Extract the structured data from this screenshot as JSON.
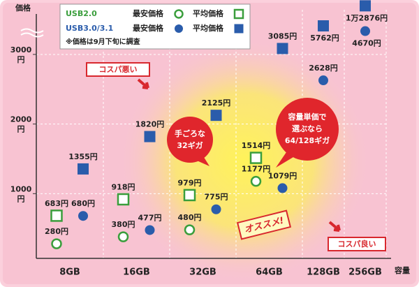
{
  "chart_data": {
    "type": "scatter",
    "y_label": "価格",
    "x_label": "容量",
    "ytick_unit": "円",
    "note": "※価格は9月下旬に調査",
    "categories": [
      "8GB",
      "16GB",
      "32GB",
      "64GB",
      "128GB",
      "256GB"
    ],
    "ylim": [
      0,
      13000
    ],
    "y_break": 3200,
    "yticks": [
      1000,
      2000,
      3000
    ],
    "grid": true,
    "groups": [
      {
        "name": "USB2.0",
        "color": "#3a9e3c"
      },
      {
        "name": "USB3.0/3.1",
        "color": "#2a5cab"
      }
    ],
    "series": [
      {
        "name": "最安価格",
        "group": 0,
        "marker": "circle",
        "values": [
          280,
          380,
          480,
          1177,
          null,
          null
        ],
        "value_labels": [
          "280円",
          "380円",
          "480円",
          "1177円",
          null,
          null
        ]
      },
      {
        "name": "平均価格",
        "group": 0,
        "marker": "square",
        "values": [
          683,
          918,
          979,
          1514,
          null,
          null
        ],
        "value_labels": [
          "683円",
          "918円",
          "979円",
          "1514円",
          null,
          null
        ]
      },
      {
        "name": "最安価格",
        "group": 1,
        "marker": "circle",
        "values": [
          680,
          477,
          775,
          1079,
          2628,
          4670
        ],
        "value_labels": [
          "680円",
          "477円",
          "775円",
          "1079円",
          "2628円",
          "4670円"
        ]
      },
      {
        "name": "平均価格",
        "group": 1,
        "marker": "square",
        "values": [
          1355,
          1820,
          2125,
          3085,
          5762,
          12876
        ],
        "value_labels": [
          "1355円",
          "1820円",
          "2125円",
          "3085円",
          "5762円",
          "1万2876円"
        ]
      }
    ],
    "annotations": {
      "bad": "コスパ悪い",
      "good": "コスパ良い",
      "cheap": [
        "手ごろな",
        "32ギガ"
      ],
      "unit_price": [
        "容量単価で",
        "選ぶなら",
        "64/128ギガ"
      ],
      "recommend": "オススメ!"
    }
  }
}
